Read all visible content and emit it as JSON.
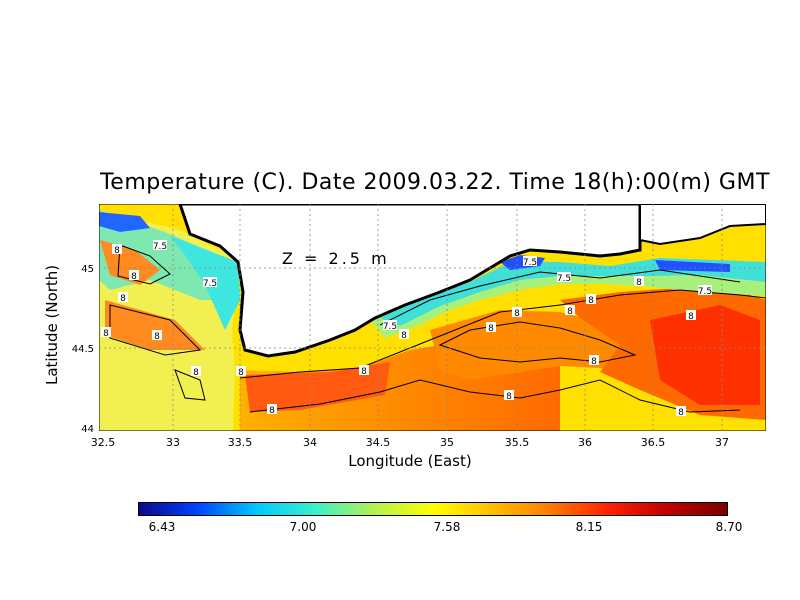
{
  "title": "Temperature (C). Date 2009.03.22. Time 18(h):00(m) GMT",
  "depth_label": "Z = 2.5 m",
  "xlabel": "Longitude (East)",
  "ylabel": "Latitude (North)",
  "x_ticks": [
    "32.5",
    "33",
    "33.5",
    "34",
    "34.5",
    "35",
    "35.5",
    "36",
    "36.5",
    "37"
  ],
  "y_ticks": [
    "44",
    "44.5",
    "45"
  ],
  "colorbar": {
    "min": 6.43,
    "max": 8.7,
    "tick_labels": [
      "6.43",
      "7.00",
      "7.58",
      "8.15",
      "8.70"
    ],
    "colors": [
      "#0a0a8c",
      "#0044ff",
      "#00c8ff",
      "#3cf0c8",
      "#b4f050",
      "#ffff00",
      "#ffc000",
      "#ff7a00",
      "#ff2000",
      "#c00000",
      "#7a0000"
    ]
  },
  "contour_labels": [
    "7.5",
    "7.5",
    "7.5",
    "7.5",
    "7.5",
    "7.5",
    "8",
    "8",
    "8",
    "8",
    "8",
    "8",
    "8",
    "8",
    "8",
    "8",
    "8",
    "8",
    "8",
    "8",
    "8",
    "8",
    "8",
    "8",
    "8"
  ],
  "chart_data": {
    "type": "heatmap",
    "variable": "Temperature (C)",
    "depth": "Z = 2.5 m",
    "xlim": [
      32.5,
      37.3
    ],
    "ylim": [
      44.0,
      45.4
    ],
    "zlim": [
      6.43,
      8.7
    ],
    "contour_levels": [
      7.5,
      8
    ]
  }
}
